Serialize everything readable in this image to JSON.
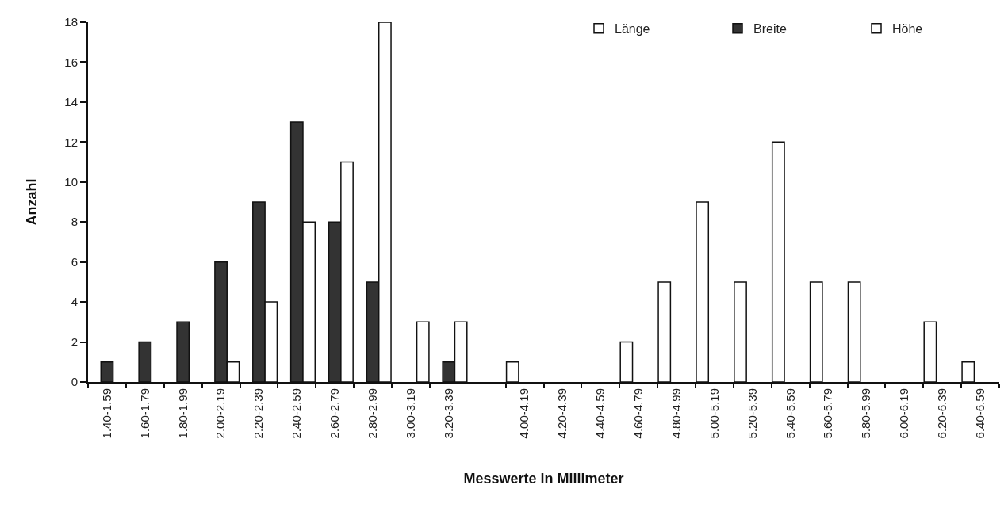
{
  "chart_data": {
    "type": "bar",
    "xlabel": "Messwerte in Millimeter",
    "ylabel": "Anzahl",
    "categories": [
      "1.40-1.59",
      "1.60-1.79",
      "1.80-1.99",
      "2.00-2.19",
      "2.20-2.39",
      "2.40-2.59",
      "2.60-2.79",
      "2.80-2.99",
      "3.00-3.19",
      "3.20-3.39",
      null,
      "4.00-4.19",
      "4.20-4.39",
      "4.40-4.59",
      "4.60-4.79",
      "4.80-4.99",
      "5.00-5.19",
      "5.20-5.39",
      "5.40-5.59",
      "5.60-5.79",
      "5.80-5.99",
      "6.00-6.19",
      "6.20-6.39",
      "6.40-6.59"
    ],
    "series": [
      {
        "name": "Länge",
        "color": "#ffffff",
        "values": [
          0,
          0,
          0,
          0,
          0,
          0,
          0,
          0,
          0,
          0,
          null,
          1,
          0,
          0,
          2,
          5,
          9,
          5,
          12,
          5,
          5,
          0,
          3,
          1
        ]
      },
      {
        "name": "Breite",
        "color": "#333333",
        "values": [
          1,
          2,
          3,
          6,
          9,
          13,
          8,
          5,
          0,
          1,
          null,
          0,
          0,
          0,
          0,
          0,
          0,
          0,
          0,
          0,
          0,
          0,
          0,
          0
        ]
      },
      {
        "name": "Höhe",
        "color": "#ffffff",
        "values": [
          0,
          0,
          0,
          1,
          4,
          8,
          11,
          18,
          3,
          3,
          null,
          0,
          0,
          0,
          0,
          0,
          0,
          0,
          0,
          0,
          0,
          0,
          0,
          0
        ]
      }
    ],
    "ylim": [
      0,
      18
    ],
    "yticks": [
      0,
      2,
      4,
      6,
      8,
      10,
      12,
      14,
      16,
      18
    ],
    "grid": false,
    "legend": "top right"
  }
}
